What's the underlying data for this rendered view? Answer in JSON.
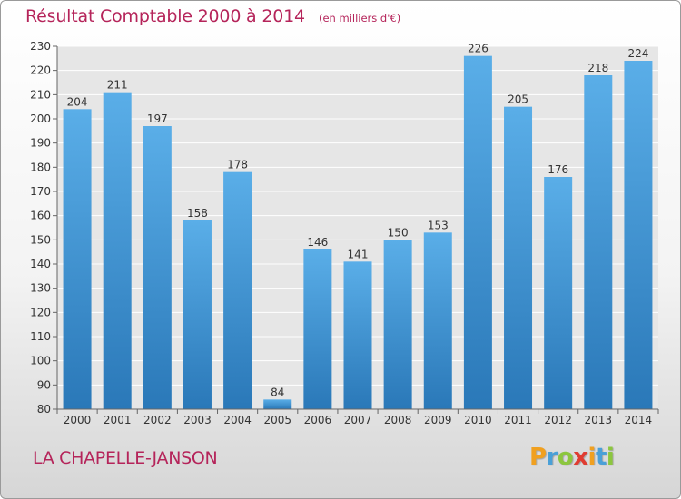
{
  "chart_data": {
    "type": "bar",
    "title": "Résultat Comptable 2000 à 2014",
    "subtitle": "(en milliers d'€)",
    "categories": [
      "2000",
      "2001",
      "2002",
      "2003",
      "2004",
      "2005",
      "2006",
      "2007",
      "2008",
      "2009",
      "2010",
      "2011",
      "2012",
      "2013",
      "2014"
    ],
    "values": [
      204,
      211,
      197,
      158,
      178,
      84,
      146,
      141,
      150,
      153,
      226,
      205,
      176,
      218,
      224
    ],
    "ylim": [
      80,
      230
    ],
    "yticks": [
      80,
      90,
      100,
      110,
      120,
      130,
      140,
      150,
      160,
      170,
      180,
      190,
      200,
      210,
      220,
      230
    ],
    "grid": true,
    "bar_color_top": "#5aaee8",
    "bar_color_bottom": "#2a78b8"
  },
  "footer": {
    "commune": "LA CHAPELLE-JANSON",
    "logo_letters": [
      "P",
      "r",
      "o",
      "x",
      "i",
      "t",
      "i"
    ],
    "logo_colors": [
      "#f0a020",
      "#4aa0d8",
      "#8cc63f",
      "#e03c31",
      "#f0a020",
      "#4aa0d8",
      "#8cc63f"
    ]
  },
  "colors": {
    "title": "#b5245a",
    "plot_background": "#e6e6e6",
    "grid": "#ffffff"
  }
}
